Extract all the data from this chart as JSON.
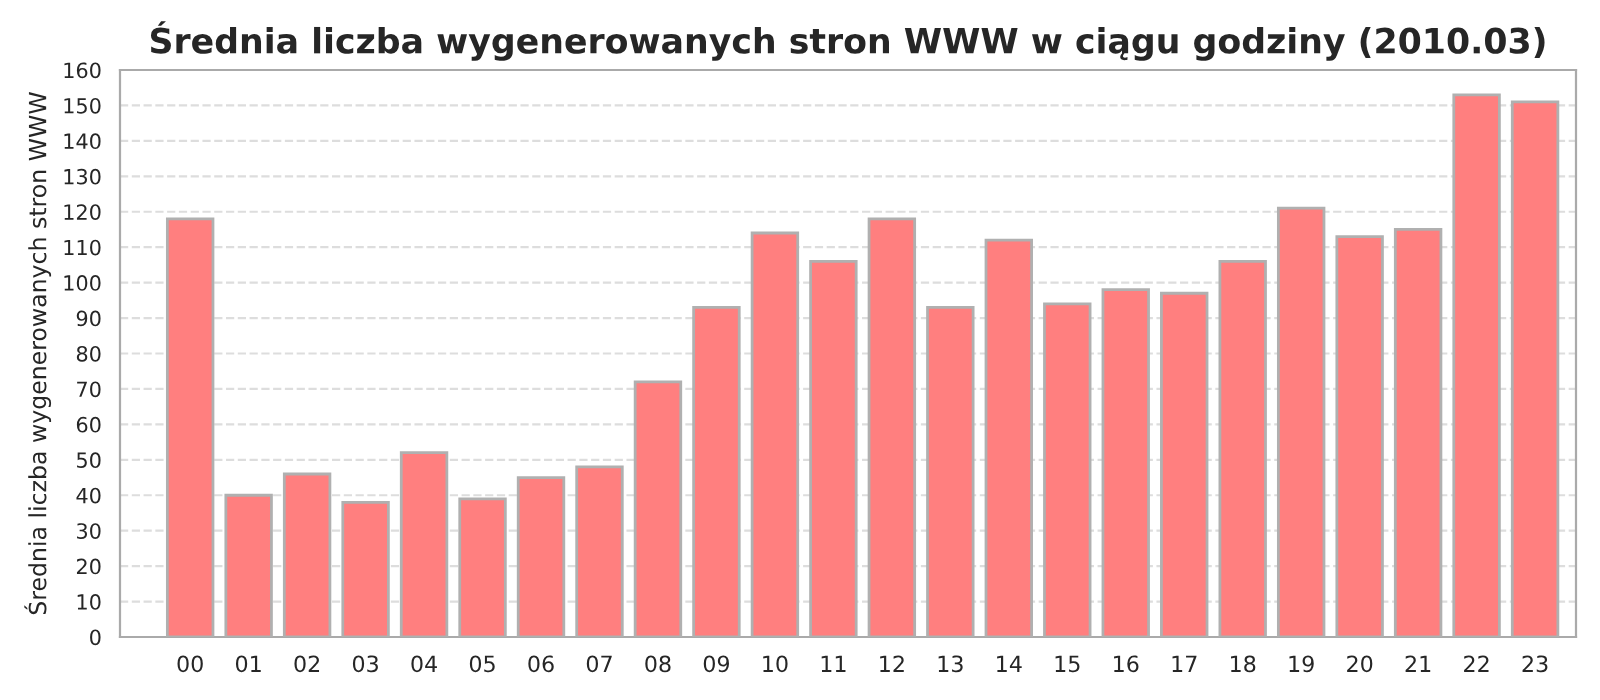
{
  "chart_data": {
    "type": "bar",
    "title": "Średnia liczba wygenerowanych stron WWW w ciągu godziny (2010.03)",
    "ylabel": "Średnia liczba wygenerowanych stron WWW",
    "categories": [
      "00",
      "01",
      "02",
      "03",
      "04",
      "05",
      "06",
      "07",
      "08",
      "09",
      "10",
      "11",
      "12",
      "13",
      "14",
      "15",
      "16",
      "17",
      "18",
      "19",
      "20",
      "21",
      "22",
      "23"
    ],
    "series": [
      {
        "color": "#ff7f7f",
        "values": [
          118,
          40,
          46,
          38,
          52,
          39,
          45,
          48,
          72,
          93,
          114,
          106,
          118,
          93,
          112,
          94,
          98,
          97,
          106,
          121,
          113,
          115,
          153,
          151
        ]
      }
    ],
    "ylim": [
      0,
      160
    ],
    "yticks": [
      0,
      10,
      20,
      30,
      40,
      50,
      60,
      70,
      80,
      90,
      100,
      110,
      120,
      130,
      140,
      150,
      160
    ],
    "grid": "y"
  }
}
